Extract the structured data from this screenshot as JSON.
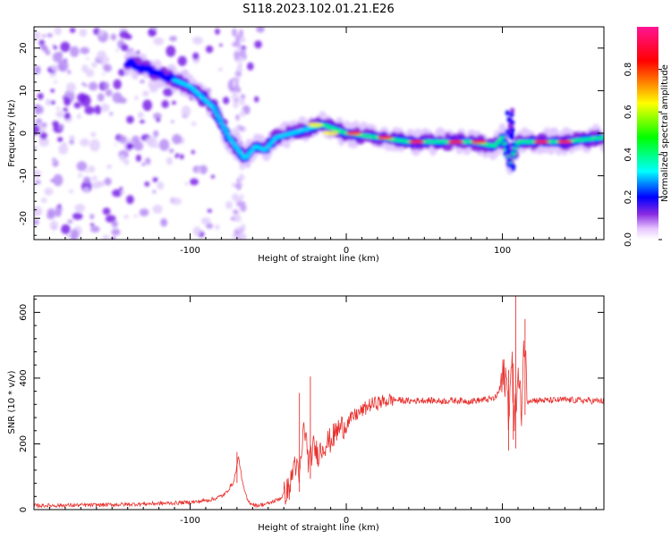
{
  "figure": {
    "title": "S118.2023.102.01.21.E26"
  },
  "chart_data": [
    {
      "type": "heatmap",
      "title": "S118.2023.102.01.21.E26",
      "xlabel": "Height of straight line (km)",
      "ylabel": "Frequency (Hz)",
      "xlim": [
        -200,
        165
      ],
      "ylim": [
        -25,
        25
      ],
      "xticks": [
        -100,
        0,
        100
      ],
      "yticks": [
        -20,
        -10,
        0,
        10,
        20
      ],
      "colorbar": {
        "label": "Normalized spectral amplitude",
        "range": [
          0,
          1
        ],
        "ticks": [
          "0.0",
          "0.2",
          "0.4",
          "0.6",
          "0.8"
        ],
        "colormap": [
          "#ffffff",
          "#e8c8ff",
          "#8a2be2",
          "#0000ff",
          "#00ffff",
          "#00ff00",
          "#ffff00",
          "#ff0000",
          "#ff1493"
        ]
      },
      "ridge": {
        "x": [
          -200,
          -150,
          -120,
          -100,
          -85,
          -75,
          -65,
          -58,
          -52,
          -45,
          -35,
          -25,
          -15,
          0,
          20,
          40,
          60,
          80,
          95,
          100,
          105,
          110,
          120,
          140,
          165
        ],
        "y": [
          20,
          18,
          14,
          11,
          6,
          -1,
          -6,
          -3,
          -4,
          -1,
          0,
          1,
          2,
          0,
          -1,
          -2,
          -2,
          -2,
          -3,
          -1,
          -7,
          -2,
          -2,
          -2,
          -1
        ]
      }
    },
    {
      "type": "line",
      "xlabel": "Height of straight line (km)",
      "ylabel": "SNR (10 * v/v)",
      "xlim": [
        -200,
        165
      ],
      "ylim": [
        0,
        650
      ],
      "xticks": [
        -100,
        0,
        100
      ],
      "yticks": [
        0,
        200,
        400,
        600
      ],
      "series": [
        {
          "color": "#e8312e",
          "x": [
            -200,
            -180,
            -160,
            -140,
            -125,
            -110,
            -95,
            -85,
            -78,
            -72,
            -69,
            -66,
            -63,
            -58,
            -50,
            -42,
            -36,
            -33,
            -30,
            -27,
            -24,
            -21,
            -18,
            -14,
            -10,
            -5,
            0,
            5,
            10,
            15,
            20,
            25,
            30,
            40,
            50,
            60,
            70,
            80,
            90,
            95,
            98,
            100,
            102,
            104,
            106,
            108,
            110,
            112,
            114,
            116,
            118,
            120,
            130,
            140,
            150,
            165
          ],
          "y": [
            12,
            13,
            14,
            16,
            18,
            20,
            24,
            32,
            45,
            85,
            160,
            70,
            25,
            12,
            18,
            35,
            70,
            150,
            90,
            260,
            140,
            190,
            170,
            200,
            210,
            245,
            260,
            285,
            300,
            318,
            325,
            330,
            335,
            330,
            333,
            330,
            332,
            330,
            335,
            338,
            360,
            390,
            410,
            300,
            430,
            280,
            400,
            300,
            530,
            330,
            335,
            333,
            332,
            334,
            332,
            330
          ]
        }
      ],
      "spikes": {
        "x": [
          -70,
          -30,
          -23,
          104,
          107,
          108.5,
          114.5
        ],
        "y": [
          175,
          355,
          405,
          425,
          445,
          650,
          580
        ]
      }
    }
  ]
}
